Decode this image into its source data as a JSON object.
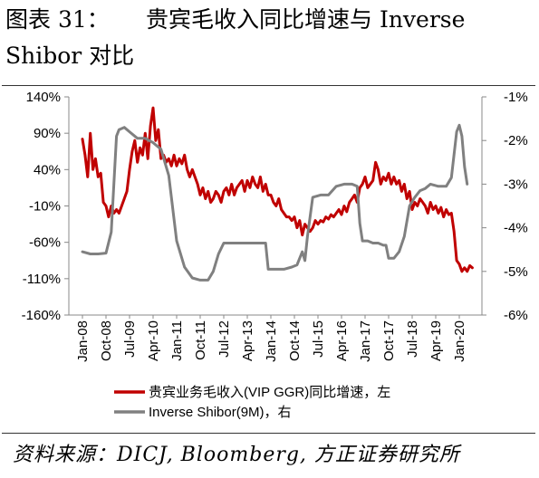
{
  "title": {
    "figure_label": "图表 31：",
    "text_line1": "贵宾毛收入同比增速与 Inverse",
    "text_line2": "Shibor 对比"
  },
  "source": "资料来源：DICJ, Bloomberg, 方正证券研究所",
  "chart_data": {
    "type": "line",
    "x_tick_labels": [
      "Jan-08",
      "Oct-08",
      "Jul-09",
      "Apr-10",
      "Jan-11",
      "Oct-11",
      "Jul-12",
      "Apr-13",
      "Jan-14",
      "Oct-14",
      "Jul-15",
      "Apr-16",
      "Jan-17",
      "Oct-17",
      "Jul-18",
      "Apr-19",
      "Jan-20"
    ],
    "y_left": {
      "ticks": [
        "140%",
        "90%",
        "40%",
        "-10%",
        "-60%",
        "-110%",
        "-160%"
      ],
      "range": [
        -160,
        140
      ],
      "unit": "%"
    },
    "y_right": {
      "ticks": [
        "-1%",
        "-2%",
        "-3%",
        "-4%",
        "-5%",
        "-6%"
      ],
      "range": [
        -6,
        -1
      ],
      "unit": "%"
    },
    "grid": false,
    "legend_position": "bottom",
    "series": [
      {
        "name": "贵宾业务毛收入(VIP GGR)同比增速，左",
        "axis": "left",
        "color": "#c00000",
        "points": [
          [
            "2008-01",
            82
          ],
          [
            "2008-02",
            60
          ],
          [
            "2008-03",
            30
          ],
          [
            "2008-04",
            90
          ],
          [
            "2008-05",
            40
          ],
          [
            "2008-06",
            55
          ],
          [
            "2008-07",
            30
          ],
          [
            "2008-08",
            35
          ],
          [
            "2008-09",
            -5
          ],
          [
            "2008-10",
            -10
          ],
          [
            "2008-11",
            -25
          ],
          [
            "2008-12",
            -10
          ],
          [
            "2009-01",
            -20
          ],
          [
            "2009-02",
            -15
          ],
          [
            "2009-03",
            -20
          ],
          [
            "2009-04",
            -10
          ],
          [
            "2009-05",
            0
          ],
          [
            "2009-06",
            10
          ],
          [
            "2009-07",
            40
          ],
          [
            "2009-08",
            65
          ],
          [
            "2009-09",
            80
          ],
          [
            "2009-10",
            50
          ],
          [
            "2009-11",
            70
          ],
          [
            "2009-12",
            60
          ],
          [
            "2010-01",
            90
          ],
          [
            "2010-02",
            55
          ],
          [
            "2010-03",
            100
          ],
          [
            "2010-04",
            125
          ],
          [
            "2010-05",
            80
          ],
          [
            "2010-06",
            95
          ],
          [
            "2010-07",
            55
          ],
          [
            "2010-08",
            60
          ],
          [
            "2010-09",
            50
          ],
          [
            "2010-10",
            55
          ],
          [
            "2010-11",
            45
          ],
          [
            "2010-12",
            60
          ],
          [
            "2011-01",
            45
          ],
          [
            "2011-02",
            55
          ],
          [
            "2011-03",
            48
          ],
          [
            "2011-04",
            60
          ],
          [
            "2011-05",
            40
          ],
          [
            "2011-06",
            30
          ],
          [
            "2011-07",
            40
          ],
          [
            "2011-08",
            30
          ],
          [
            "2011-09",
            20
          ],
          [
            "2011-10",
            5
          ],
          [
            "2011-11",
            15
          ],
          [
            "2011-12",
            0
          ],
          [
            "2012-01",
            10
          ],
          [
            "2012-02",
            -5
          ],
          [
            "2012-03",
            0
          ],
          [
            "2012-04",
            10
          ],
          [
            "2012-05",
            5
          ],
          [
            "2012-06",
            -5
          ],
          [
            "2012-07",
            10
          ],
          [
            "2012-08",
            15
          ],
          [
            "2012-09",
            5
          ],
          [
            "2012-10",
            20
          ],
          [
            "2012-11",
            5
          ],
          [
            "2012-12",
            15
          ],
          [
            "2013-01",
            20
          ],
          [
            "2013-02",
            25
          ],
          [
            "2013-03",
            10
          ],
          [
            "2013-04",
            25
          ],
          [
            "2013-05",
            15
          ],
          [
            "2013-06",
            30
          ],
          [
            "2013-07",
            20
          ],
          [
            "2013-08",
            15
          ],
          [
            "2013-09",
            30
          ],
          [
            "2013-10",
            10
          ],
          [
            "2013-11",
            20
          ],
          [
            "2013-12",
            5
          ],
          [
            "2014-01",
            5
          ],
          [
            "2014-02",
            -5
          ],
          [
            "2014-03",
            -10
          ],
          [
            "2014-04",
            0
          ],
          [
            "2014-05",
            -15
          ],
          [
            "2014-06",
            -20
          ],
          [
            "2014-07",
            -25
          ],
          [
            "2014-08",
            -25
          ],
          [
            "2014-09",
            -30
          ],
          [
            "2014-10",
            -25
          ],
          [
            "2014-11",
            -40
          ],
          [
            "2014-12",
            -30
          ],
          [
            "2015-01",
            -50
          ],
          [
            "2015-02",
            -35
          ],
          [
            "2015-03",
            -40
          ],
          [
            "2015-04",
            -45
          ],
          [
            "2015-05",
            -40
          ],
          [
            "2015-06",
            -30
          ],
          [
            "2015-07",
            -35
          ],
          [
            "2015-08",
            -30
          ],
          [
            "2015-09",
            -32
          ],
          [
            "2015-10",
            -25
          ],
          [
            "2015-11",
            -28
          ],
          [
            "2015-12",
            -22
          ],
          [
            "2016-01",
            -25
          ],
          [
            "2016-02",
            -20
          ],
          [
            "2016-03",
            -15
          ],
          [
            "2016-04",
            -22
          ],
          [
            "2016-05",
            -10
          ],
          [
            "2016-06",
            -18
          ],
          [
            "2016-07",
            -5
          ],
          [
            "2016-08",
            0
          ],
          [
            "2016-09",
            5
          ],
          [
            "2016-10",
            -5
          ],
          [
            "2016-11",
            15
          ],
          [
            "2016-12",
            20
          ],
          [
            "2017-01",
            30
          ],
          [
            "2017-02",
            15
          ],
          [
            "2017-03",
            20
          ],
          [
            "2017-04",
            25
          ],
          [
            "2017-05",
            50
          ],
          [
            "2017-06",
            40
          ],
          [
            "2017-07",
            20
          ],
          [
            "2017-08",
            30
          ],
          [
            "2017-09",
            25
          ],
          [
            "2017-10",
            35
          ],
          [
            "2017-11",
            20
          ],
          [
            "2017-12",
            30
          ],
          [
            "2018-01",
            20
          ],
          [
            "2018-02",
            25
          ],
          [
            "2018-03",
            10
          ],
          [
            "2018-04",
            20
          ],
          [
            "2018-05",
            0
          ],
          [
            "2018-06",
            10
          ],
          [
            "2018-07",
            -15
          ],
          [
            "2018-08",
            -5
          ],
          [
            "2018-09",
            -10
          ],
          [
            "2018-10",
            0
          ],
          [
            "2018-11",
            -5
          ],
          [
            "2018-12",
            -10
          ],
          [
            "2019-01",
            -20
          ],
          [
            "2019-02",
            -5
          ],
          [
            "2019-03",
            -15
          ],
          [
            "2019-04",
            -10
          ],
          [
            "2019-05",
            -20
          ],
          [
            "2019-06",
            -12
          ],
          [
            "2019-07",
            -25
          ],
          [
            "2019-08",
            -15
          ],
          [
            "2019-09",
            -22
          ],
          [
            "2019-10",
            -20
          ],
          [
            "2019-11",
            -45
          ],
          [
            "2019-12",
            -85
          ],
          [
            "2020-01",
            -90
          ],
          [
            "2020-02",
            -100
          ],
          [
            "2020-03",
            -95
          ],
          [
            "2020-04",
            -100
          ],
          [
            "2020-05",
            -92
          ],
          [
            "2020-06",
            -95
          ]
        ]
      },
      {
        "name": "Inverse Shibor(9M)，右",
        "axis": "right",
        "color": "#808080",
        "points": [
          [
            "2008-01",
            -4.55
          ],
          [
            "2008-04",
            -4.6
          ],
          [
            "2008-07",
            -4.6
          ],
          [
            "2008-10",
            -4.58
          ],
          [
            "2008-12",
            -4.1
          ],
          [
            "2009-01",
            -3.0
          ],
          [
            "2009-02",
            -1.9
          ],
          [
            "2009-03",
            -1.75
          ],
          [
            "2009-05",
            -1.7
          ],
          [
            "2009-07",
            -1.8
          ],
          [
            "2009-10",
            -1.95
          ],
          [
            "2010-01",
            -1.95
          ],
          [
            "2010-04",
            -2.05
          ],
          [
            "2010-07",
            -2.2
          ],
          [
            "2010-10",
            -2.8
          ],
          [
            "2011-01",
            -4.3
          ],
          [
            "2011-04",
            -4.9
          ],
          [
            "2011-07",
            -5.15
          ],
          [
            "2011-10",
            -5.2
          ],
          [
            "2012-01",
            -5.2
          ],
          [
            "2012-03",
            -5.0
          ],
          [
            "2012-05",
            -4.6
          ],
          [
            "2012-07",
            -4.35
          ],
          [
            "2012-10",
            -4.35
          ],
          [
            "2013-03",
            -4.35
          ],
          [
            "2013-06",
            -4.35
          ],
          [
            "2013-09",
            -4.35
          ],
          [
            "2013-11",
            -4.35
          ],
          [
            "2013-12",
            -4.95
          ],
          [
            "2014-03",
            -4.95
          ],
          [
            "2014-06",
            -4.95
          ],
          [
            "2014-09",
            -4.9
          ],
          [
            "2014-11",
            -4.85
          ],
          [
            "2015-01",
            -4.55
          ],
          [
            "2015-02",
            -4.75
          ],
          [
            "2015-03",
            -4.2
          ],
          [
            "2015-05",
            -3.3
          ],
          [
            "2015-08",
            -3.25
          ],
          [
            "2015-11",
            -3.25
          ],
          [
            "2016-02",
            -3.05
          ],
          [
            "2016-05",
            -3.0
          ],
          [
            "2016-08",
            -3.0
          ],
          [
            "2016-10",
            -3.05
          ],
          [
            "2016-11",
            -3.9
          ],
          [
            "2016-12",
            -4.3
          ],
          [
            "2017-02",
            -4.3
          ],
          [
            "2017-04",
            -4.35
          ],
          [
            "2017-06",
            -4.35
          ],
          [
            "2017-08",
            -4.4
          ],
          [
            "2017-09",
            -4.4
          ],
          [
            "2017-10",
            -4.7
          ],
          [
            "2017-12",
            -4.7
          ],
          [
            "2018-02",
            -4.55
          ],
          [
            "2018-04",
            -4.2
          ],
          [
            "2018-06",
            -3.5
          ],
          [
            "2018-08",
            -3.3
          ],
          [
            "2018-10",
            -3.15
          ],
          [
            "2018-12",
            -3.1
          ],
          [
            "2019-02",
            -3.0
          ],
          [
            "2019-05",
            -3.05
          ],
          [
            "2019-08",
            -3.05
          ],
          [
            "2019-10",
            -2.85
          ],
          [
            "2019-12",
            -1.8
          ],
          [
            "2020-01",
            -1.65
          ],
          [
            "2020-02",
            -1.9
          ],
          [
            "2020-03",
            -2.6
          ],
          [
            "2020-04",
            -3.0
          ]
        ]
      }
    ]
  }
}
